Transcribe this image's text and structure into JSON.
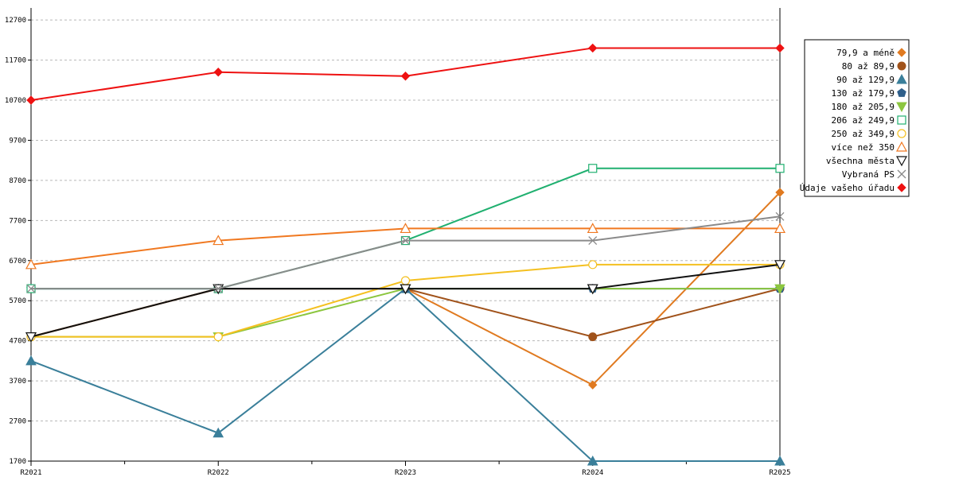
{
  "chart_data": {
    "type": "line",
    "categories": [
      "R2021",
      "R2022",
      "R2023",
      "R2024",
      "R2025"
    ],
    "yticks": [
      1700,
      2700,
      3700,
      4700,
      5700,
      6700,
      7700,
      8700,
      9700,
      10700,
      11700,
      12700
    ],
    "ylim": [
      1700,
      13000
    ],
    "grid": true,
    "legend_position": "right",
    "series": [
      {
        "name": "79,9 a méně",
        "color": "#e07a20",
        "marker": "diamond-filled",
        "values": [
          4800,
          6000,
          6000,
          3600,
          8400
        ]
      },
      {
        "name": "80 až 89,9",
        "color": "#a0521a",
        "marker": "circle-filled",
        "values": [
          4800,
          6000,
          6000,
          4800,
          6000
        ]
      },
      {
        "name": "90 až 129,9",
        "color": "#3a7f9a",
        "marker": "triangle-up-filled",
        "values": [
          4200,
          2400,
          6000,
          1700,
          1700
        ]
      },
      {
        "name": "130 až 179,9",
        "color": "#2f5f8a",
        "marker": "pentagon-filled",
        "values": [
          6000,
          6000,
          6000,
          6000,
          6000
        ]
      },
      {
        "name": "180 až 205,9",
        "color": "#8cc63f",
        "marker": "triangle-down-filled",
        "values": [
          4800,
          4800,
          6000,
          6000,
          6000
        ]
      },
      {
        "name": "206 až 249,9",
        "color": "#20b070",
        "marker": "square-open",
        "values": [
          6000,
          6000,
          7200,
          9000,
          9000
        ]
      },
      {
        "name": "250 až 349,9",
        "color": "#f4c020",
        "marker": "circle-open",
        "values": [
          4800,
          4800,
          6200,
          6600,
          6600
        ]
      },
      {
        "name": "více než 350",
        "color": "#f07820",
        "marker": "triangle-up-open",
        "values": [
          6600,
          7200,
          7500,
          7500,
          7500
        ]
      },
      {
        "name": "všechna města",
        "color": "#111111",
        "marker": "triangle-down-open",
        "values": [
          4800,
          6000,
          6000,
          6000,
          6600
        ]
      },
      {
        "name": "Vybraná PS",
        "color": "#8a8a8a",
        "marker": "x",
        "values": [
          6000,
          6000,
          7200,
          7200,
          7800
        ]
      },
      {
        "name": "Údaje vašeho úřadu",
        "color": "#ee1111",
        "marker": "diamond-filled",
        "values": [
          10700,
          11400,
          11300,
          12000,
          12000
        ]
      }
    ]
  }
}
